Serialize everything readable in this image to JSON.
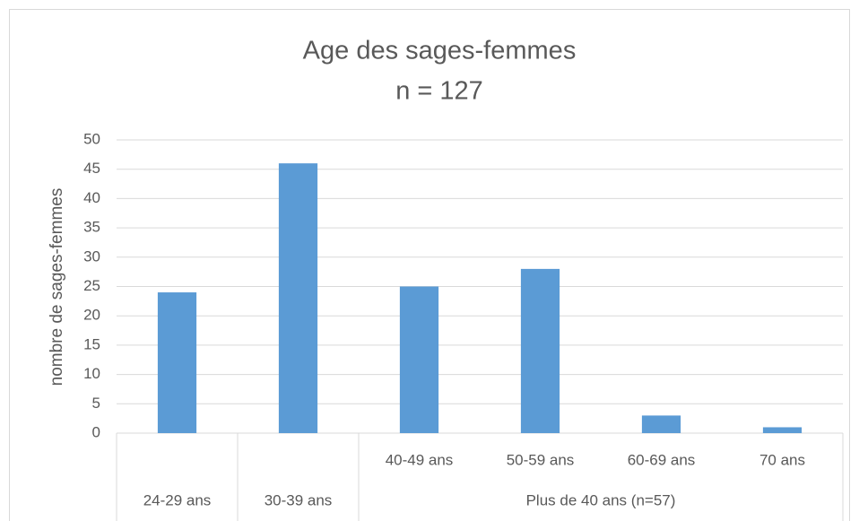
{
  "chart_data": {
    "type": "bar",
    "title": [
      "Age des sages-femmes",
      "n = 127"
    ],
    "y_label": "nombre de sages-femmes",
    "categories": [
      "24-29 ans",
      "30-39 ans",
      "40-49 ans",
      "50-59 ans",
      "60-69 ans",
      "70 ans"
    ],
    "groups": [
      {
        "label": "Plus de 40 ans (n=57)",
        "start": 2,
        "end": 5
      }
    ],
    "values": [
      24,
      46,
      25,
      28,
      3,
      1
    ],
    "color": "#5b9bd5",
    "ylim": [
      0,
      50
    ],
    "yticks": [
      0,
      5,
      10,
      15,
      20,
      25,
      30,
      35,
      40,
      45,
      50
    ],
    "grid": true
  }
}
